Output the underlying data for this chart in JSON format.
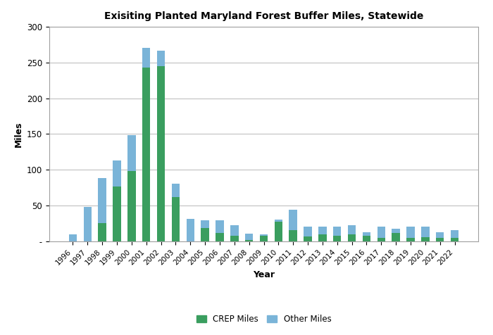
{
  "title": "Exisiting Planted Maryland Forest Buffer Miles, Statewide",
  "xlabel": "Year",
  "ylabel": "Miles",
  "years": [
    "1996",
    "1997",
    "1998",
    "1999",
    "2000",
    "2001",
    "2002",
    "2003",
    "2004",
    "2005",
    "2006",
    "2007",
    "2008",
    "2009",
    "2010",
    "2011",
    "2012",
    "2013",
    "2014",
    "2015",
    "2016",
    "2017",
    "2018",
    "2019",
    "2020",
    "2021",
    "2022"
  ],
  "crep_miles": [
    0,
    0,
    25,
    77,
    98,
    243,
    245,
    62,
    0,
    18,
    12,
    8,
    2,
    8,
    27,
    15,
    7,
    10,
    8,
    10,
    8,
    5,
    12,
    5,
    6,
    5,
    5
  ],
  "other_miles": [
    10,
    48,
    63,
    36,
    50,
    28,
    22,
    18,
    31,
    11,
    17,
    14,
    9,
    2,
    3,
    29,
    13,
    10,
    12,
    12,
    5,
    15,
    5,
    15,
    14,
    8,
    10
  ],
  "crep_color": "#3a9e5f",
  "other_color": "#7ab4d8",
  "ylim": [
    0,
    300
  ],
  "yticks": [
    0,
    50,
    100,
    150,
    200,
    250,
    300
  ],
  "legend_labels": [
    "CREP Miles",
    "Other Miles"
  ],
  "background_color": "#ffffff",
  "grid_color": "#c0c0c0"
}
